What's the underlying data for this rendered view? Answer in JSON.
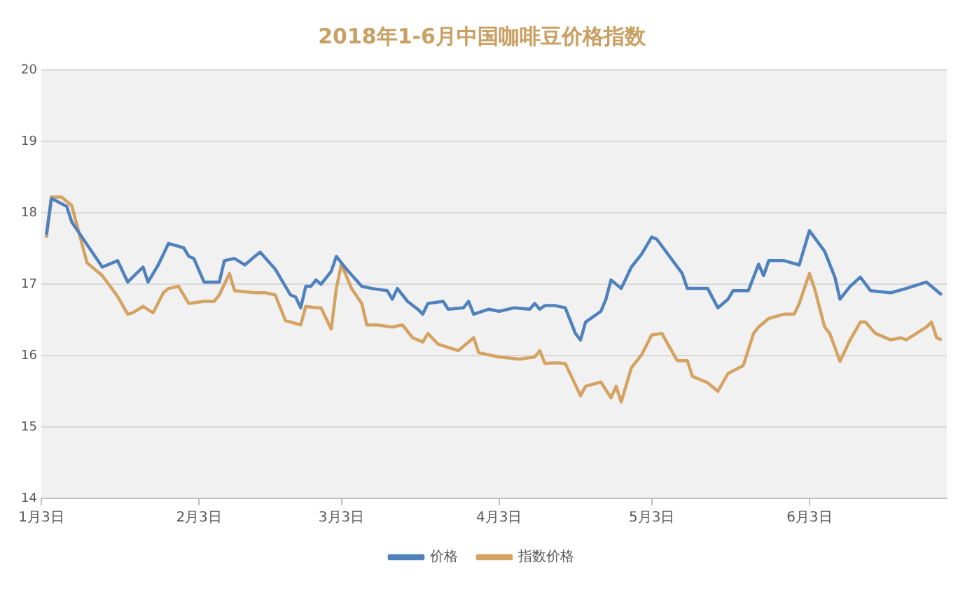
{
  "chart_data": {
    "type": "line",
    "title": "2018年1-6月中国咖啡豆价格指数",
    "xlim": [
      "2018-01-03",
      "2018-06-30"
    ],
    "xticks": [
      {
        "value": "2018-01-03",
        "label": "1月3日"
      },
      {
        "value": "2018-02-03",
        "label": "2月3日"
      },
      {
        "value": "2018-03-03",
        "label": "3月3日"
      },
      {
        "value": "2018-04-03",
        "label": "4月3日"
      },
      {
        "value": "2018-05-03",
        "label": "5月3日"
      },
      {
        "value": "2018-06-03",
        "label": "6月3日"
      }
    ],
    "ylim": [
      14,
      20
    ],
    "yticks": [
      14,
      15,
      16,
      17,
      18,
      19,
      20
    ],
    "grid": "y",
    "legend": "bottom",
    "marker": "none",
    "line_style": "solid",
    "series": [
      {
        "name": "价格",
        "color": "#4f81bd",
        "x": [
          "2018-01-04",
          "2018-01-05",
          "2018-01-08",
          "2018-01-09",
          "2018-01-15",
          "2018-01-18",
          "2018-01-20",
          "2018-01-23",
          "2018-01-24",
          "2018-01-26",
          "2018-01-28",
          "2018-01-31",
          "2018-02-01",
          "2018-02-02",
          "2018-02-04",
          "2018-02-07",
          "2018-02-08",
          "2018-02-10",
          "2018-02-12",
          "2018-02-15",
          "2018-02-18",
          "2018-02-21",
          "2018-02-22",
          "2018-02-23",
          "2018-02-24",
          "2018-02-25",
          "2018-02-26",
          "2018-02-27",
          "2018-03-01",
          "2018-03-02",
          "2018-03-04",
          "2018-03-07",
          "2018-03-09",
          "2018-03-12",
          "2018-03-13",
          "2018-03-14",
          "2018-03-16",
          "2018-03-18",
          "2018-03-19",
          "2018-03-20",
          "2018-03-23",
          "2018-03-24",
          "2018-03-27",
          "2018-03-28",
          "2018-03-29",
          "2018-04-01",
          "2018-04-03",
          "2018-04-06",
          "2018-04-09",
          "2018-04-10",
          "2018-04-11",
          "2018-04-12",
          "2018-04-14",
          "2018-04-16",
          "2018-04-18",
          "2018-04-19",
          "2018-04-20",
          "2018-04-23",
          "2018-04-24",
          "2018-04-25",
          "2018-04-27",
          "2018-04-29",
          "2018-05-01",
          "2018-05-03",
          "2018-05-04",
          "2018-05-09",
          "2018-05-10",
          "2018-05-14",
          "2018-05-16",
          "2018-05-18",
          "2018-05-19",
          "2018-05-22",
          "2018-05-24",
          "2018-05-25",
          "2018-05-26",
          "2018-05-29",
          "2018-06-01",
          "2018-06-03",
          "2018-06-06",
          "2018-06-08",
          "2018-06-09",
          "2018-06-11",
          "2018-06-13",
          "2018-06-15",
          "2018-06-19",
          "2018-06-22",
          "2018-06-26",
          "2018-06-29"
        ],
        "values": [
          17.69,
          18.2,
          18.09,
          17.87,
          17.24,
          17.33,
          17.03,
          17.24,
          17.03,
          17.27,
          17.57,
          17.51,
          17.39,
          17.36,
          17.03,
          17.03,
          17.33,
          17.36,
          17.27,
          17.45,
          17.21,
          16.85,
          16.82,
          16.67,
          16.97,
          16.97,
          17.06,
          17.0,
          17.18,
          17.39,
          17.21,
          16.97,
          16.94,
          16.91,
          16.79,
          16.94,
          16.76,
          16.65,
          16.58,
          16.73,
          16.76,
          16.65,
          16.67,
          16.76,
          16.58,
          16.65,
          16.62,
          16.67,
          16.65,
          16.73,
          16.65,
          16.7,
          16.7,
          16.67,
          16.31,
          16.22,
          16.47,
          16.62,
          16.79,
          17.06,
          16.94,
          17.24,
          17.42,
          17.66,
          17.63,
          17.15,
          16.94,
          16.94,
          16.67,
          16.79,
          16.91,
          16.91,
          17.28,
          17.12,
          17.33,
          17.33,
          17.27,
          17.75,
          17.46,
          17.1,
          16.79,
          16.97,
          17.1,
          16.91,
          16.88,
          16.94,
          17.03,
          16.85
        ]
      },
      {
        "name": "指数价格",
        "color": "#d4a261",
        "x": [
          "2018-01-04",
          "2018-01-05",
          "2018-01-07",
          "2018-01-09",
          "2018-01-12",
          "2018-01-15",
          "2018-01-18",
          "2018-01-20",
          "2018-01-21",
          "2018-01-23",
          "2018-01-25",
          "2018-01-27",
          "2018-01-28",
          "2018-01-30",
          "2018-02-01",
          "2018-02-04",
          "2018-02-06",
          "2018-02-07",
          "2018-02-09",
          "2018-02-10",
          "2018-02-14",
          "2018-02-16",
          "2018-02-18",
          "2018-02-20",
          "2018-02-23",
          "2018-02-24",
          "2018-02-26",
          "2018-02-27",
          "2018-03-01",
          "2018-03-02",
          "2018-03-03",
          "2018-03-05",
          "2018-03-07",
          "2018-03-08",
          "2018-03-10",
          "2018-03-13",
          "2018-03-15",
          "2018-03-17",
          "2018-03-19",
          "2018-03-20",
          "2018-03-22",
          "2018-03-26",
          "2018-03-29",
          "2018-03-30",
          "2018-04-03",
          "2018-04-07",
          "2018-04-10",
          "2018-04-11",
          "2018-04-12",
          "2018-04-14",
          "2018-04-16",
          "2018-04-19",
          "2018-04-20",
          "2018-04-23",
          "2018-04-25",
          "2018-04-26",
          "2018-04-27",
          "2018-04-29",
          "2018-05-01",
          "2018-05-03",
          "2018-05-05",
          "2018-05-08",
          "2018-05-10",
          "2018-05-11",
          "2018-05-14",
          "2018-05-16",
          "2018-05-18",
          "2018-05-21",
          "2018-05-23",
          "2018-05-24",
          "2018-05-26",
          "2018-05-29",
          "2018-05-31",
          "2018-06-01",
          "2018-06-02",
          "2018-06-03",
          "2018-06-04",
          "2018-06-06",
          "2018-06-07",
          "2018-06-09",
          "2018-06-11",
          "2018-06-13",
          "2018-06-14",
          "2018-06-16",
          "2018-06-19",
          "2018-06-21",
          "2018-06-22",
          "2018-06-24",
          "2018-06-26",
          "2018-06-27",
          "2018-06-28",
          "2018-06-29"
        ],
        "values": [
          17.65,
          18.22,
          18.22,
          18.1,
          17.3,
          17.12,
          16.83,
          16.58,
          16.6,
          16.69,
          16.6,
          16.88,
          16.94,
          16.97,
          16.73,
          16.76,
          16.76,
          16.85,
          17.15,
          16.91,
          16.88,
          16.88,
          16.85,
          16.49,
          16.43,
          16.69,
          16.67,
          16.67,
          16.37,
          16.94,
          17.28,
          16.94,
          16.73,
          16.43,
          16.43,
          16.4,
          16.43,
          16.25,
          16.19,
          16.31,
          16.16,
          16.07,
          16.25,
          16.04,
          15.98,
          15.95,
          15.98,
          16.07,
          15.89,
          15.9,
          15.89,
          15.44,
          15.57,
          15.63,
          15.41,
          15.57,
          15.35,
          15.83,
          16.01,
          16.29,
          16.31,
          15.93,
          15.93,
          15.71,
          15.62,
          15.5,
          15.75,
          15.86,
          16.31,
          16.4,
          16.52,
          16.58,
          16.58,
          16.73,
          16.94,
          17.15,
          16.94,
          16.4,
          16.31,
          15.92,
          16.22,
          16.47,
          16.47,
          16.31,
          16.22,
          16.25,
          16.22,
          16.31,
          16.4,
          16.47,
          16.25,
          16.22
        ]
      }
    ]
  }
}
